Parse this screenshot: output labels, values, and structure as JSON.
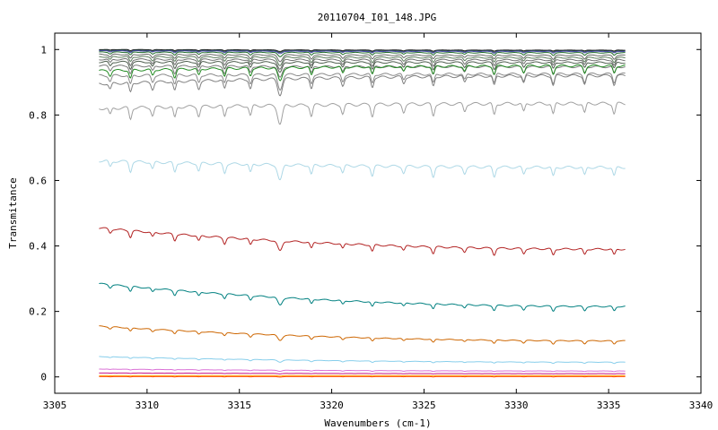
{
  "chart_data": {
    "type": "line",
    "title": "20110704_I01_148.JPG",
    "xlabel": "Wavenumbers (cm-1)",
    "ylabel": "Transmitance",
    "xlim": [
      3305,
      3340
    ],
    "ylim": [
      -0.05,
      1.05
    ],
    "x_ticks": [
      "3305",
      "3310",
      "3315",
      "3320",
      "3325",
      "3330",
      "3335",
      "3340"
    ],
    "y_ticks": [
      "0",
      "0.2",
      "0.4",
      "0.6",
      "0.8",
      "1"
    ],
    "grid": false,
    "legend": "none",
    "x_range": [
      3307.4,
      3335.9
    ],
    "line_positions": [
      3308.0,
      3309.1,
      3310.3,
      3311.5,
      3312.8,
      3314.2,
      3315.6,
      3317.2,
      3318.9,
      3320.6,
      3322.2,
      3323.9,
      3325.5,
      3327.2,
      3328.8,
      3330.4,
      3332.0,
      3333.7,
      3335.3
    ],
    "series": [
      {
        "color": "#1a1a1a",
        "start": 1.0,
        "end": 0.998,
        "dip": 0.003
      },
      {
        "color": "#2f4f4f",
        "start": 0.998,
        "end": 0.996,
        "dip": 0.004
      },
      {
        "color": "#4a4aa8",
        "start": 0.996,
        "end": 0.994,
        "dip": 0.005
      },
      {
        "color": "#1f6b2a",
        "start": 0.992,
        "end": 0.99,
        "dip": 0.008
      },
      {
        "color": "#6a6a6a",
        "start": 0.985,
        "end": 0.982,
        "dip": 0.012
      },
      {
        "color": "#5f7f5f",
        "start": 0.978,
        "end": 0.975,
        "dip": 0.015
      },
      {
        "color": "#707070",
        "start": 0.97,
        "end": 0.968,
        "dip": 0.018
      },
      {
        "color": "#4f5f4f",
        "start": 0.962,
        "end": 0.96,
        "dip": 0.02
      },
      {
        "color": "#7a7a7a",
        "start": 0.95,
        "end": 0.947,
        "dip": 0.022
      },
      {
        "color": "#228b22",
        "start": 0.935,
        "end": 0.95,
        "dip": 0.025
      },
      {
        "color": "#8a8a8a",
        "start": 0.92,
        "end": 0.925,
        "dip": 0.028
      },
      {
        "color": "#808080",
        "start": 0.895,
        "end": 0.92,
        "dip": 0.03
      },
      {
        "color": "#a0a0a0",
        "start": 0.82,
        "end": 0.835,
        "dip": 0.035
      },
      {
        "color": "#add8e6",
        "start": 0.66,
        "end": 0.64,
        "dip": 0.03
      },
      {
        "color": "#b22222",
        "start": 0.455,
        "end": 0.39,
        "dip": 0.02
      },
      {
        "color": "#008080",
        "start": 0.285,
        "end": 0.215,
        "dip": 0.015
      },
      {
        "color": "#cd6600",
        "start": 0.155,
        "end": 0.11,
        "dip": 0.01
      },
      {
        "color": "#87ceeb",
        "start": 0.062,
        "end": 0.045,
        "dip": 0.004
      },
      {
        "color": "#da70d6",
        "start": 0.024,
        "end": 0.018,
        "dip": 0.002
      },
      {
        "color": "#c71585",
        "start": 0.012,
        "end": 0.01,
        "dip": 0.001
      },
      {
        "color": "#ffa500",
        "start": 0.004,
        "end": 0.004,
        "dip": 0.001
      },
      {
        "color": "#ff4500",
        "start": 0.001,
        "end": 0.001,
        "dip": 0.001
      }
    ]
  }
}
